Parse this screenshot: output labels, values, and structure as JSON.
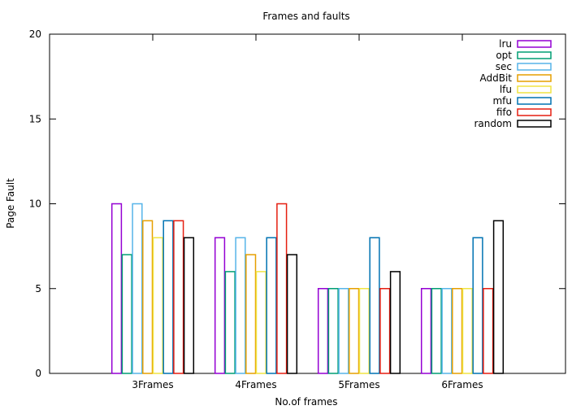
{
  "chart_data": {
    "type": "bar",
    "title": "Frames and faults",
    "xlabel": "No.of frames",
    "ylabel": "Page Fault",
    "ylim": [
      0,
      20
    ],
    "yticks": [
      0,
      5,
      10,
      15,
      20
    ],
    "grid": false,
    "legend_position": "top-right",
    "categories": [
      "3Frames",
      "4Frames",
      "5Frames",
      "6Frames"
    ],
    "series": [
      {
        "name": "lru",
        "color": "#9400d3",
        "values": [
          10,
          8,
          5,
          5
        ]
      },
      {
        "name": "opt",
        "color": "#009e73",
        "values": [
          7,
          6,
          5,
          5
        ]
      },
      {
        "name": "sec",
        "color": "#56b4e9",
        "values": [
          10,
          8,
          5,
          5
        ]
      },
      {
        "name": "AddBit",
        "color": "#e69f00",
        "values": [
          9,
          7,
          5,
          5
        ]
      },
      {
        "name": "lfu",
        "color": "#f0e442",
        "values": [
          8,
          6,
          5,
          5
        ]
      },
      {
        "name": "mfu",
        "color": "#0072b2",
        "values": [
          9,
          8,
          8,
          8
        ]
      },
      {
        "name": "fifo",
        "color": "#e51e10",
        "values": [
          9,
          10,
          5,
          5
        ]
      },
      {
        "name": "random",
        "color": "#000000",
        "values": [
          8,
          7,
          6,
          9
        ]
      }
    ]
  }
}
